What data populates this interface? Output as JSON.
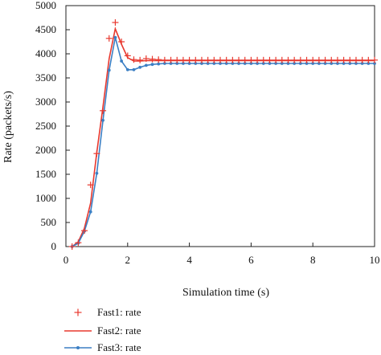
{
  "chart_data": {
    "type": "line",
    "title": "",
    "xlabel": "Simulation time (s)",
    "ylabel": "Rate (packets/s)",
    "xlim": [
      0,
      10
    ],
    "ylim": [
      0,
      5000
    ],
    "xticks": [
      0,
      2,
      4,
      6,
      8,
      10
    ],
    "yticks": [
      0,
      500,
      1000,
      1500,
      2000,
      2500,
      3000,
      3500,
      4000,
      4500,
      5000
    ],
    "xtick_labels": [
      "0",
      "2",
      "4",
      "6",
      "8",
      "10"
    ],
    "ytick_labels": [
      "0",
      "500",
      "1000",
      "1500",
      "2000",
      "2500",
      "3000",
      "3500",
      "4000",
      "4500",
      "5000"
    ],
    "grid": false,
    "legend_position": "below plot, left",
    "series": [
      {
        "name": "Fast1: rate",
        "style": "markers-plus",
        "color": "#e8382e",
        "x": [
          0.2,
          0.4,
          0.6,
          0.8,
          1.0,
          1.2,
          1.4,
          1.6,
          1.8,
          2.0,
          2.2,
          2.4,
          2.6,
          2.8,
          3.0,
          3.2,
          3.4,
          3.6,
          3.8,
          4.0,
          4.2,
          4.4,
          4.6,
          4.8,
          5.0,
          5.2,
          5.4,
          5.6,
          5.8,
          6.0,
          6.2,
          6.4,
          6.6,
          6.8,
          7.0,
          7.2,
          7.4,
          7.6,
          7.8,
          8.0,
          8.2,
          8.4,
          8.6,
          8.8,
          9.0,
          9.2,
          9.4,
          9.6,
          9.8,
          10.0
        ],
        "y": [
          0,
          80,
          330,
          1280,
          1930,
          2820,
          4320,
          4650,
          4250,
          3960,
          3880,
          3870,
          3900,
          3890,
          3880,
          3870,
          3870,
          3870,
          3870,
          3870,
          3870,
          3870,
          3870,
          3870,
          3870,
          3870,
          3870,
          3870,
          3870,
          3870,
          3870,
          3870,
          3870,
          3870,
          3870,
          3870,
          3870,
          3870,
          3870,
          3870,
          3870,
          3870,
          3870,
          3870,
          3870,
          3870,
          3870,
          3870,
          3870,
          3870
        ]
      },
      {
        "name": "Fast2: rate",
        "style": "line",
        "color": "#e8382e",
        "x": [
          0.2,
          0.4,
          0.6,
          0.8,
          1.0,
          1.2,
          1.4,
          1.6,
          1.8,
          2.0,
          2.2,
          2.4,
          2.6,
          2.8,
          3.0,
          3.5,
          4.0,
          5.0,
          6.0,
          7.0,
          8.0,
          9.0,
          10.0
        ],
        "y": [
          0,
          100,
          380,
          900,
          1950,
          2900,
          3900,
          4520,
          4200,
          3920,
          3850,
          3850,
          3860,
          3860,
          3860,
          3860,
          3860,
          3860,
          3860,
          3860,
          3860,
          3860,
          3860
        ]
      },
      {
        "name": "Fast3: rate",
        "style": "line-dots",
        "color": "#3b7fc4",
        "x": [
          0.2,
          0.4,
          0.6,
          0.8,
          1.0,
          1.2,
          1.4,
          1.6,
          1.8,
          2.0,
          2.2,
          2.4,
          2.6,
          2.8,
          3.0,
          3.2,
          3.4,
          3.6,
          3.8,
          4.0,
          4.2,
          4.4,
          4.6,
          4.8,
          5.0,
          5.2,
          5.4,
          5.6,
          5.8,
          6.0,
          6.2,
          6.4,
          6.6,
          6.8,
          7.0,
          7.2,
          7.4,
          7.6,
          7.8,
          8.0,
          8.2,
          8.4,
          8.6,
          8.8,
          9.0,
          9.2,
          9.4,
          9.6,
          9.8,
          10.0
        ],
        "y": [
          0,
          70,
          320,
          720,
          1520,
          2620,
          3660,
          4340,
          3850,
          3670,
          3670,
          3720,
          3760,
          3780,
          3790,
          3800,
          3800,
          3800,
          3800,
          3800,
          3800,
          3800,
          3800,
          3800,
          3800,
          3800,
          3800,
          3800,
          3800,
          3800,
          3800,
          3800,
          3800,
          3800,
          3800,
          3800,
          3800,
          3800,
          3800,
          3800,
          3800,
          3800,
          3800,
          3800,
          3800,
          3800,
          3800,
          3800,
          3800,
          3800
        ]
      }
    ]
  }
}
